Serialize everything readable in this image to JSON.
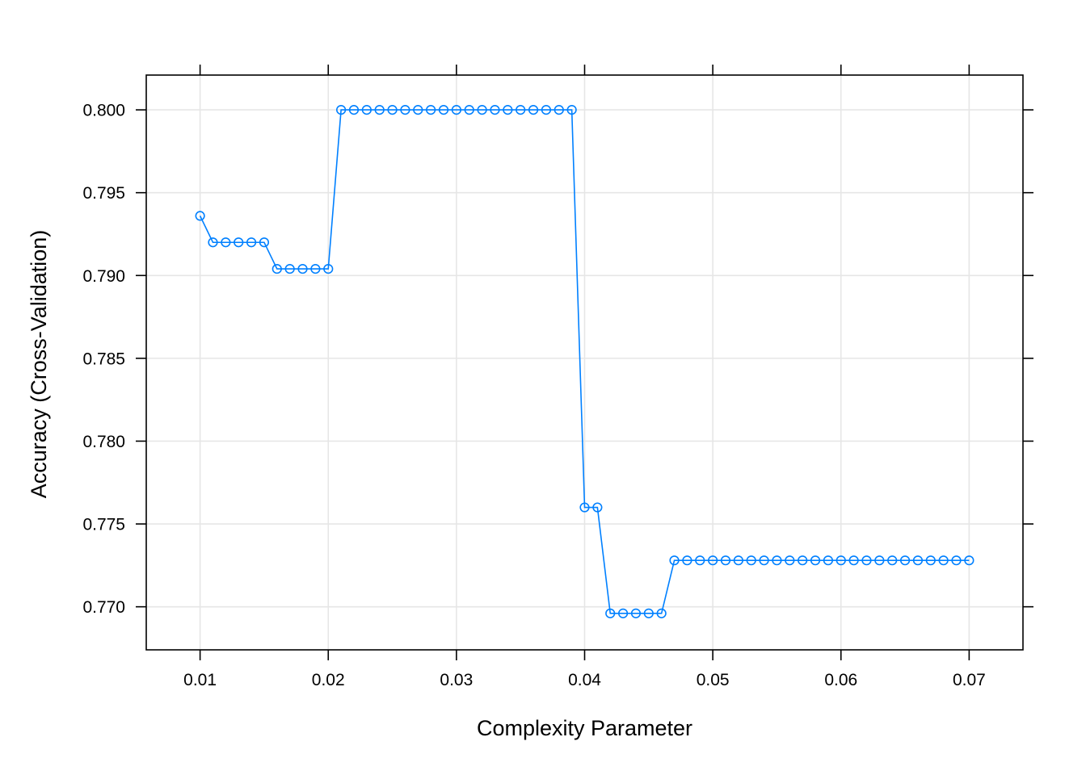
{
  "chart_data": {
    "type": "line",
    "title": "",
    "xlabel": "Complexity Parameter",
    "ylabel": "Accuracy (Cross-Validation)",
    "xlim": [
      0.0058,
      0.0742
    ],
    "ylim": [
      0.7674,
      0.8021
    ],
    "x_ticks": [
      "0.01",
      "0.02",
      "0.03",
      "0.04",
      "0.05",
      "0.06",
      "0.07"
    ],
    "x_tick_values": [
      0.01,
      0.02,
      0.03,
      0.04,
      0.05,
      0.06,
      0.07
    ],
    "y_ticks": [
      "0.770",
      "0.775",
      "0.780",
      "0.785",
      "0.790",
      "0.795",
      "0.800"
    ],
    "y_tick_values": [
      0.77,
      0.775,
      0.78,
      0.785,
      0.79,
      0.795,
      0.8
    ],
    "grid": true,
    "marker": "open-circle",
    "series": [
      {
        "color": "#0080ff",
        "x": [
          0.01,
          0.011,
          0.012,
          0.013,
          0.014,
          0.015,
          0.016,
          0.017,
          0.018,
          0.019,
          0.02,
          0.021,
          0.022,
          0.023,
          0.024,
          0.025,
          0.026,
          0.027,
          0.028,
          0.029,
          0.03,
          0.031,
          0.032,
          0.033,
          0.034,
          0.035,
          0.036,
          0.037,
          0.038,
          0.039,
          0.04,
          0.041,
          0.042,
          0.043,
          0.044,
          0.045,
          0.046,
          0.047,
          0.048,
          0.049,
          0.05,
          0.051,
          0.052,
          0.053,
          0.054,
          0.055,
          0.056,
          0.057,
          0.058,
          0.059,
          0.06,
          0.061,
          0.062,
          0.063,
          0.064,
          0.065,
          0.066,
          0.067,
          0.068,
          0.069,
          0.07
        ],
        "y": [
          0.7936,
          0.792,
          0.792,
          0.792,
          0.792,
          0.792,
          0.7904,
          0.7904,
          0.7904,
          0.7904,
          0.7904,
          0.8,
          0.8,
          0.8,
          0.8,
          0.8,
          0.8,
          0.8,
          0.8,
          0.8,
          0.8,
          0.8,
          0.8,
          0.8,
          0.8,
          0.8,
          0.8,
          0.8,
          0.8,
          0.8,
          0.776,
          0.776,
          0.7696,
          0.7696,
          0.7696,
          0.7696,
          0.7696,
          0.7728,
          0.7728,
          0.7728,
          0.7728,
          0.7728,
          0.7728,
          0.7728,
          0.7728,
          0.7728,
          0.7728,
          0.7728,
          0.7728,
          0.7728,
          0.7728,
          0.7728,
          0.7728,
          0.7728,
          0.7728,
          0.7728,
          0.7728,
          0.7728,
          0.7728,
          0.7728,
          0.7728
        ]
      }
    ]
  }
}
